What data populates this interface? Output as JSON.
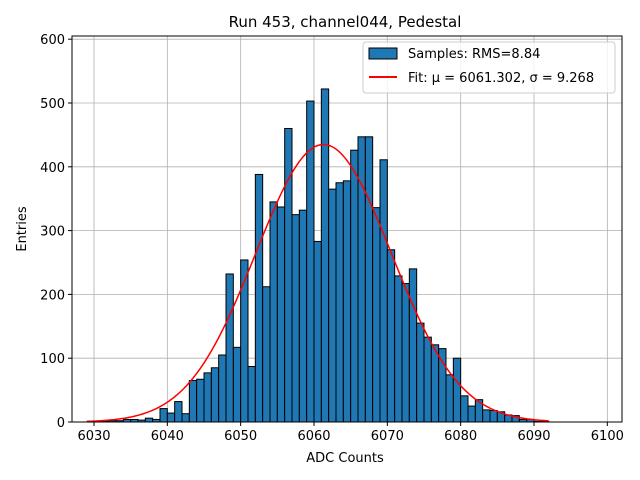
{
  "chart_data": {
    "type": "bar",
    "title": "Run 453, channel044, Pedestal",
    "xlabel": "ADC Counts",
    "ylabel": "Entries",
    "xlim": [
      6027,
      6102
    ],
    "ylim": [
      0,
      605
    ],
    "xticks": [
      6030,
      6040,
      6050,
      6060,
      6070,
      6080,
      6090,
      6100
    ],
    "yticks": [
      0,
      100,
      200,
      300,
      400,
      500,
      600
    ],
    "grid": true,
    "legend_position": "top-right",
    "bin_width": 1,
    "histogram": {
      "name": "Samples: RMS=8.84",
      "color": "#1f77b4",
      "edge_color": "#000000",
      "bins": [
        6029,
        6030,
        6031,
        6032,
        6033,
        6034,
        6035,
        6036,
        6037,
        6038,
        6039,
        6040,
        6041,
        6042,
        6043,
        6044,
        6045,
        6046,
        6047,
        6048,
        6049,
        6050,
        6051,
        6052,
        6053,
        6054,
        6055,
        6056,
        6057,
        6058,
        6059,
        6060,
        6061,
        6062,
        6063,
        6064,
        6065,
        6066,
        6067,
        6068,
        6069,
        6070,
        6071,
        6072,
        6073,
        6074,
        6075,
        6076,
        6077,
        6078,
        6079,
        6080,
        6081,
        6082,
        6083,
        6084,
        6085,
        6086,
        6087,
        6088,
        6089,
        6090,
        6091
      ],
      "values": [
        0,
        1,
        1,
        2,
        2,
        4,
        4,
        3,
        6,
        4,
        21,
        14,
        32,
        13,
        65,
        67,
        77,
        85,
        105,
        232,
        117,
        254,
        87,
        388,
        212,
        345,
        337,
        460,
        325,
        332,
        503,
        283,
        522,
        365,
        375,
        378,
        426,
        447,
        447,
        336,
        411,
        270,
        229,
        217,
        240,
        155,
        133,
        121,
        115,
        74,
        100,
        41,
        25,
        35,
        19,
        18,
        16,
        11,
        10,
        4,
        4,
        1,
        1
      ]
    },
    "fit": {
      "name": "Fit: μ = 6061.302, σ = 9.268",
      "color": "#ff0000",
      "mu": 6061.302,
      "sigma": 9.268,
      "amplitude": 435,
      "x_range": [
        6029,
        6092
      ]
    }
  }
}
